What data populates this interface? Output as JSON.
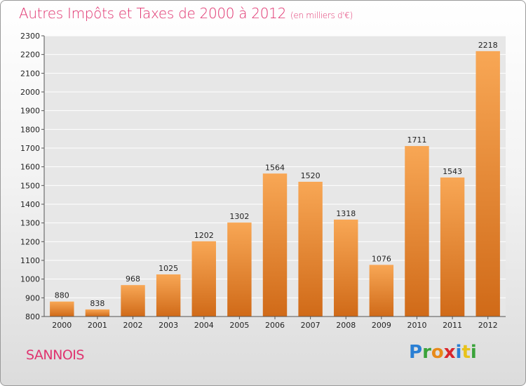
{
  "header": {
    "title": "Autres Impôts et Taxes de 2000 à 2012",
    "unit": "(en milliers d'€)"
  },
  "footer": {
    "commune": "SANNOIS",
    "logo": [
      "P",
      "r",
      "o",
      "x",
      "i",
      "t",
      "i"
    ],
    "logo_colors": [
      "#2a7fd4",
      "#3aa33a",
      "#e88a1a",
      "#d9262c",
      "#2a7fd4",
      "#e8c21a",
      "#3aa33a"
    ]
  },
  "chart_data": {
    "type": "bar",
    "title": "Autres Impôts et Taxes de 2000 à 2012",
    "subtitle": "(en milliers d'€)",
    "categories": [
      "2000",
      "2001",
      "2002",
      "2003",
      "2004",
      "2005",
      "2006",
      "2007",
      "2008",
      "2009",
      "2010",
      "2011",
      "2012"
    ],
    "values": [
      880,
      838,
      968,
      1025,
      1202,
      1302,
      1564,
      1520,
      1318,
      1076,
      1711,
      1543,
      2218
    ],
    "ylim": [
      800,
      2300
    ],
    "yticks": [
      800,
      900,
      1000,
      1100,
      1200,
      1300,
      1400,
      1500,
      1600,
      1700,
      1800,
      1900,
      2000,
      2100,
      2200,
      2300
    ],
    "grid": true,
    "bar_color_top": "#f8a755",
    "bar_color_bottom": "#d06a18",
    "plot_background": "#e7e7e7"
  }
}
